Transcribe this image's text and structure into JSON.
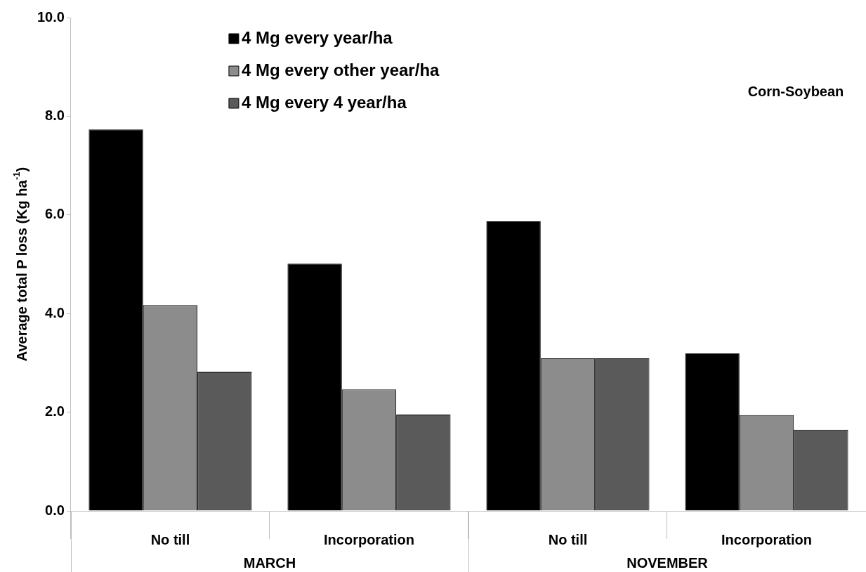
{
  "chart_data": {
    "type": "bar",
    "ylabel": "Average total P loss (Kg ha$^{-1}$)",
    "categories": [
      "No till",
      "Incorporation",
      "No till",
      "Incorporation"
    ],
    "series": [
      {
        "name": "4 Mg every year/ha",
        "color": "#000000",
        "values": [
          7.73,
          5.01,
          5.87,
          3.19
        ]
      },
      {
        "name": "4 Mg every other year/ha",
        "color": "#8c8c8c",
        "values": [
          4.17,
          2.46,
          3.09,
          1.94
        ]
      },
      {
        "name": "4 Mg every 4 year/ha",
        "color": "#5a5a5a",
        "values": [
          2.82,
          1.95,
          3.09,
          1.64
        ]
      }
    ],
    "ylim": [
      0,
      10
    ],
    "yticks": [
      {
        "value": 0,
        "label": "0.0"
      },
      {
        "value": 2,
        "label": "2.0"
      },
      {
        "value": 4,
        "label": "4.0"
      },
      {
        "value": 6,
        "label": "6.0"
      },
      {
        "value": 8,
        "label": "8.0"
      },
      {
        "value": 10,
        "label": "10.0"
      }
    ],
    "annotations": [
      "Corn-Soybean",
      "MARCH",
      "NOVEMBER"
    ],
    "grid": false,
    "legend": "top"
  }
}
